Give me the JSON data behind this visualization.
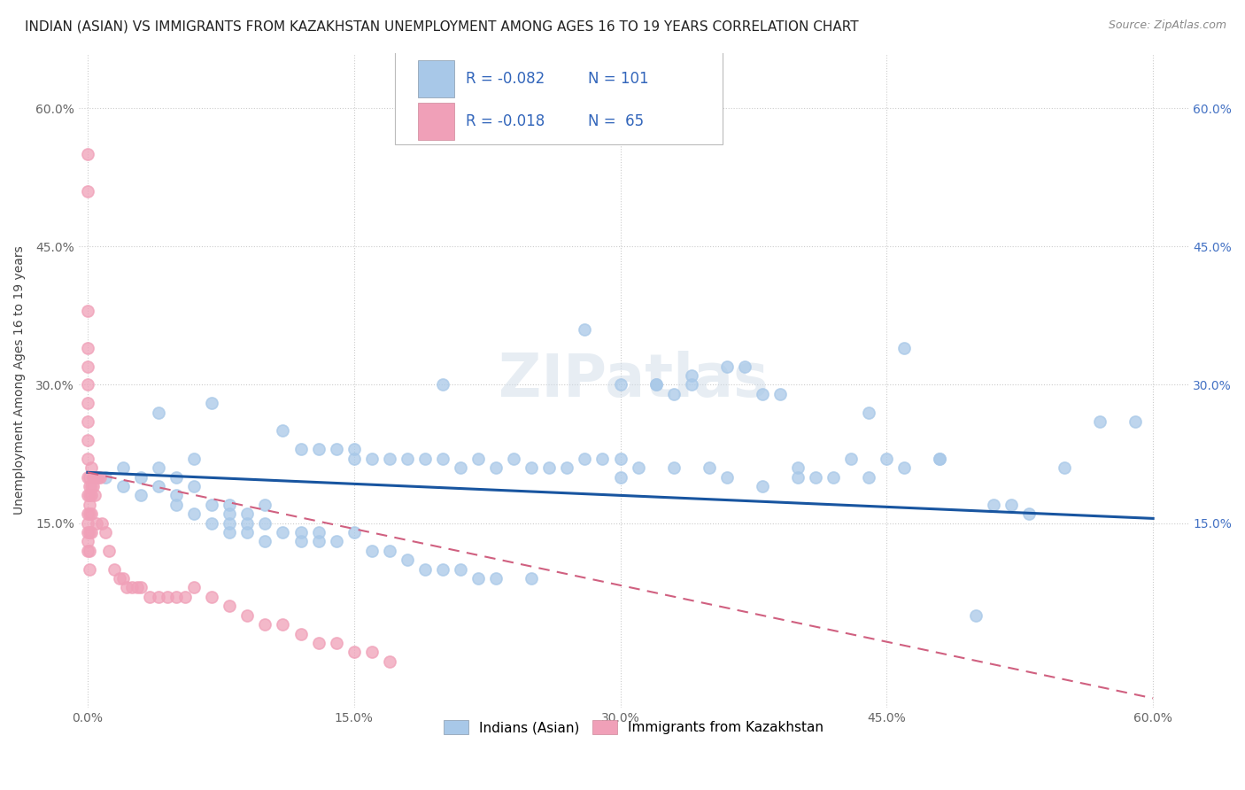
{
  "title": "INDIAN (ASIAN) VS IMMIGRANTS FROM KAZAKHSTAN UNEMPLOYMENT AMONG AGES 16 TO 19 YEARS CORRELATION CHART",
  "source": "Source: ZipAtlas.com",
  "ylabel": "Unemployment Among Ages 16 to 19 years",
  "xlim": [
    -0.005,
    0.62
  ],
  "ylim": [
    -0.05,
    0.66
  ],
  "xticks": [
    0.0,
    0.15,
    0.3,
    0.45,
    0.6
  ],
  "yticks": [
    0.15,
    0.3,
    0.45,
    0.6
  ],
  "xticklabels": [
    "0.0%",
    "15.0%",
    "30.0%",
    "45.0%",
    "60.0%"
  ],
  "yticklabels": [
    "15.0%",
    "30.0%",
    "45.0%",
    "60.0%"
  ],
  "right_yticklabels": [
    "15.0%",
    "30.0%",
    "45.0%",
    "60.0%"
  ],
  "right_yticks": [
    0.15,
    0.3,
    0.45,
    0.6
  ],
  "legend_r1": "R = -0.082",
  "legend_n1": "N = 101",
  "legend_r2": "R = -0.018",
  "legend_n2": "N =  65",
  "legend_label1": "Indians (Asian)",
  "legend_label2": "Immigrants from Kazakhstan",
  "blue_color": "#a8c8e8",
  "pink_color": "#f0a0b8",
  "blue_line_color": "#1855a0",
  "pink_line_color": "#d06080",
  "title_fontsize": 11,
  "axis_label_fontsize": 10,
  "tick_fontsize": 10,
  "legend_fontsize": 12,
  "watermark": "ZIPatlas",
  "blue_scatter_x": [
    0.01,
    0.02,
    0.02,
    0.03,
    0.03,
    0.04,
    0.04,
    0.04,
    0.05,
    0.05,
    0.05,
    0.06,
    0.06,
    0.06,
    0.07,
    0.07,
    0.07,
    0.08,
    0.08,
    0.08,
    0.08,
    0.09,
    0.09,
    0.09,
    0.1,
    0.1,
    0.1,
    0.11,
    0.11,
    0.12,
    0.12,
    0.12,
    0.13,
    0.13,
    0.13,
    0.14,
    0.14,
    0.15,
    0.15,
    0.15,
    0.16,
    0.16,
    0.17,
    0.17,
    0.18,
    0.18,
    0.19,
    0.19,
    0.2,
    0.2,
    0.2,
    0.21,
    0.21,
    0.22,
    0.22,
    0.23,
    0.23,
    0.24,
    0.25,
    0.25,
    0.26,
    0.27,
    0.28,
    0.28,
    0.29,
    0.3,
    0.3,
    0.31,
    0.32,
    0.33,
    0.33,
    0.34,
    0.35,
    0.36,
    0.37,
    0.38,
    0.39,
    0.4,
    0.41,
    0.42,
    0.43,
    0.44,
    0.45,
    0.46,
    0.48,
    0.5,
    0.51,
    0.53,
    0.55,
    0.57,
    0.59,
    0.3,
    0.32,
    0.34,
    0.36,
    0.38,
    0.4,
    0.44,
    0.46,
    0.48,
    0.52
  ],
  "blue_scatter_y": [
    0.2,
    0.19,
    0.21,
    0.2,
    0.18,
    0.19,
    0.21,
    0.27,
    0.18,
    0.2,
    0.17,
    0.19,
    0.16,
    0.22,
    0.17,
    0.15,
    0.28,
    0.17,
    0.16,
    0.15,
    0.14,
    0.16,
    0.15,
    0.14,
    0.17,
    0.15,
    0.13,
    0.14,
    0.25,
    0.14,
    0.13,
    0.23,
    0.14,
    0.13,
    0.23,
    0.13,
    0.23,
    0.14,
    0.22,
    0.23,
    0.22,
    0.12,
    0.22,
    0.12,
    0.22,
    0.11,
    0.22,
    0.1,
    0.22,
    0.1,
    0.3,
    0.1,
    0.21,
    0.09,
    0.22,
    0.09,
    0.21,
    0.22,
    0.09,
    0.21,
    0.21,
    0.21,
    0.22,
    0.36,
    0.22,
    0.22,
    0.3,
    0.21,
    0.3,
    0.21,
    0.29,
    0.31,
    0.21,
    0.32,
    0.32,
    0.29,
    0.29,
    0.21,
    0.2,
    0.2,
    0.22,
    0.27,
    0.22,
    0.34,
    0.22,
    0.05,
    0.17,
    0.16,
    0.21,
    0.26,
    0.26,
    0.2,
    0.3,
    0.3,
    0.2,
    0.19,
    0.2,
    0.2,
    0.21,
    0.22,
    0.17
  ],
  "pink_scatter_x": [
    0.0,
    0.0,
    0.0,
    0.0,
    0.0,
    0.0,
    0.0,
    0.0,
    0.0,
    0.0,
    0.0,
    0.0,
    0.0,
    0.0,
    0.0,
    0.0,
    0.0,
    0.001,
    0.001,
    0.001,
    0.001,
    0.001,
    0.001,
    0.001,
    0.001,
    0.002,
    0.002,
    0.002,
    0.002,
    0.002,
    0.003,
    0.003,
    0.004,
    0.004,
    0.005,
    0.005,
    0.006,
    0.007,
    0.008,
    0.01,
    0.012,
    0.015,
    0.018,
    0.02,
    0.022,
    0.025,
    0.028,
    0.03,
    0.035,
    0.04,
    0.045,
    0.05,
    0.055,
    0.06,
    0.07,
    0.08,
    0.09,
    0.1,
    0.11,
    0.12,
    0.13,
    0.14,
    0.15,
    0.16,
    0.17
  ],
  "pink_scatter_y": [
    0.55,
    0.51,
    0.38,
    0.34,
    0.32,
    0.3,
    0.28,
    0.26,
    0.24,
    0.22,
    0.2,
    0.18,
    0.16,
    0.15,
    0.14,
    0.13,
    0.12,
    0.2,
    0.19,
    0.18,
    0.17,
    0.16,
    0.14,
    0.12,
    0.1,
    0.21,
    0.19,
    0.18,
    0.16,
    0.14,
    0.2,
    0.19,
    0.2,
    0.18,
    0.2,
    0.15,
    0.2,
    0.2,
    0.15,
    0.14,
    0.12,
    0.1,
    0.09,
    0.09,
    0.08,
    0.08,
    0.08,
    0.08,
    0.07,
    0.07,
    0.07,
    0.07,
    0.07,
    0.08,
    0.07,
    0.06,
    0.05,
    0.04,
    0.04,
    0.03,
    0.02,
    0.02,
    0.01,
    0.01,
    0.0
  ],
  "blue_trend_x": [
    0.0,
    0.6
  ],
  "blue_trend_y": [
    0.205,
    0.155
  ],
  "pink_trend_x": [
    0.0,
    0.6
  ],
  "pink_trend_y": [
    0.205,
    -0.04
  ]
}
